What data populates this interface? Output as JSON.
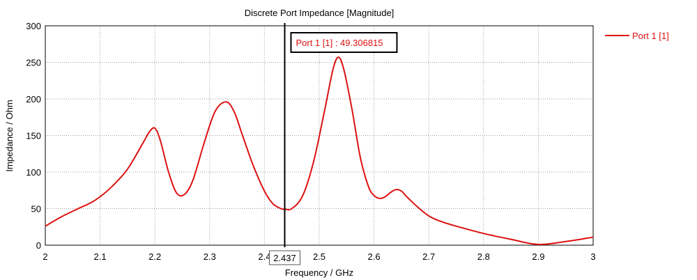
{
  "chart_data": {
    "type": "line",
    "title": "Discrete Port Impedance [Magnitude]",
    "xlabel": "Frequency / GHz",
    "ylabel": "Impedance / Ohm",
    "xlim": [
      2,
      3
    ],
    "ylim": [
      0,
      300
    ],
    "x_ticks": [
      "2",
      "2.1",
      "2.2",
      "2.3",
      "2.4",
      "2.5",
      "2.6",
      "2.7",
      "2.8",
      "2.9",
      "3"
    ],
    "y_ticks": [
      "0",
      "50",
      "100",
      "150",
      "200",
      "250",
      "300"
    ],
    "grid": true,
    "legend_position": "right",
    "series": [
      {
        "name": "Port 1 [1]",
        "color": "#dd1111",
        "x": [
          2.0,
          2.03,
          2.06,
          2.09,
          2.12,
          2.15,
          2.18,
          2.19,
          2.2,
          2.21,
          2.225,
          2.24,
          2.255,
          2.27,
          2.29,
          2.31,
          2.33,
          2.345,
          2.36,
          2.38,
          2.4,
          2.415,
          2.43,
          2.437,
          2.45,
          2.47,
          2.49,
          2.51,
          2.525,
          2.535,
          2.545,
          2.56,
          2.575,
          2.59,
          2.6,
          2.61,
          2.62,
          2.63,
          2.64,
          2.65,
          2.66,
          2.68,
          2.7,
          2.72,
          2.75,
          2.8,
          2.85,
          2.9,
          2.95,
          3.0
        ],
        "y": [
          26,
          39,
          50,
          61,
          79,
          104,
          142,
          155,
          160,
          143,
          100,
          71,
          70,
          90,
          140,
          183,
          196,
          182,
          150,
          108,
          74,
          57,
          50,
          49.306815,
          50,
          68,
          115,
          185,
          240,
          257,
          240,
          185,
          120,
          80,
          68,
          64,
          66,
          72,
          76,
          74,
          66,
          52,
          40,
          33,
          26,
          16,
          8,
          1,
          5,
          11
        ]
      }
    ],
    "marker": {
      "x": 2.437,
      "x_label": "2.437",
      "label": "Port 1 [1] : 49.306815"
    }
  }
}
